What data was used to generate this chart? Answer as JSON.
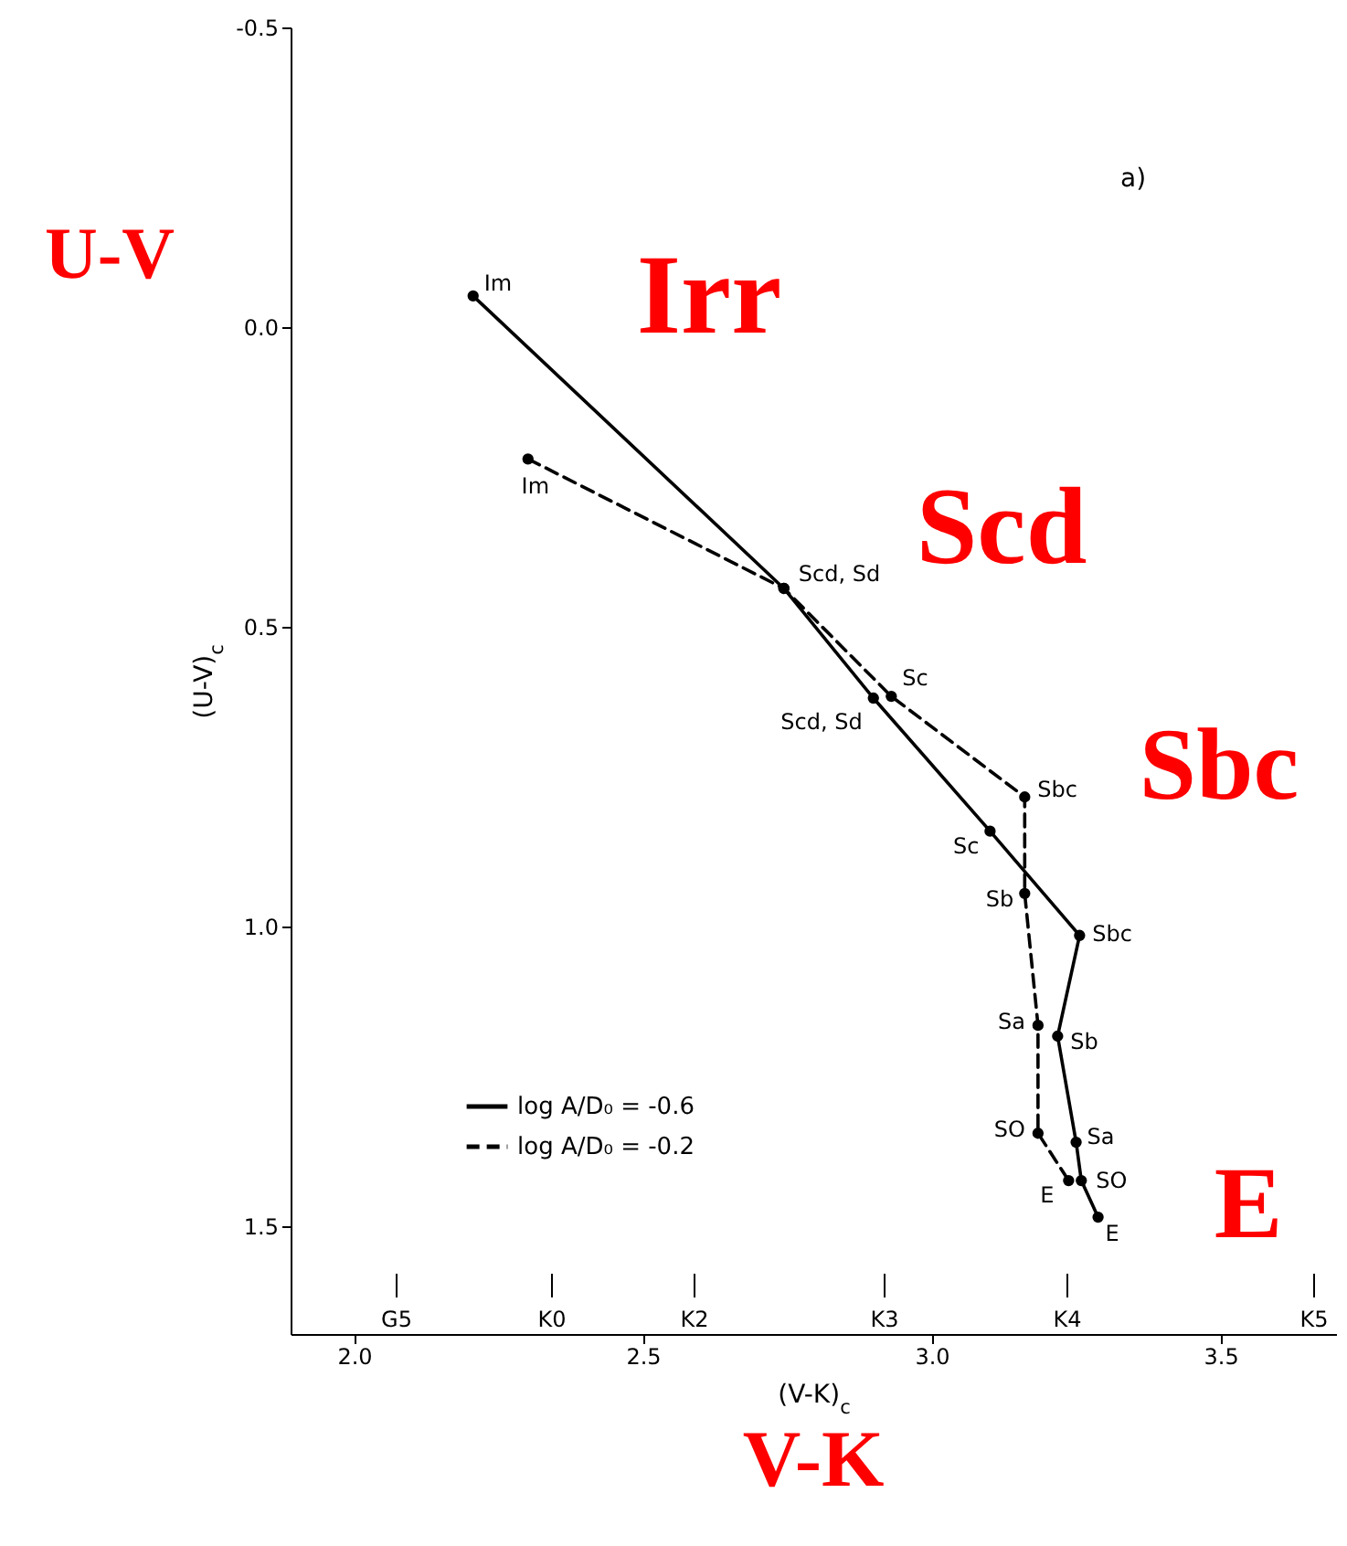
{
  "chart_data": {
    "type": "line",
    "xlabel": "(V-K)$_{c}$",
    "ylabel": "(U-V)$_{c}$",
    "xlim": [
      1.89,
      3.7
    ],
    "xticks": [
      {
        "value": 2,
        "label": "2.0"
      },
      {
        "value": 2.5,
        "label": "2.5"
      },
      {
        "value": 3,
        "label": "3.0"
      },
      {
        "value": 3.5,
        "label": "3.5"
      }
    ],
    "ylim": [
      1.68,
      -0.5
    ],
    "yticks": [
      {
        "value": -0.5,
        "label": "-0.5"
      },
      {
        "value": 0,
        "label": "0.0"
      },
      {
        "value": 0.5,
        "label": "0.5"
      },
      {
        "value": 1,
        "label": "1.0"
      },
      {
        "value": 1.5,
        "label": "1.5"
      }
    ],
    "marker": "circle",
    "legend": "bottom left",
    "series": [
      {
        "name": "log A/D₀ = -0.6",
        "color": "#000000",
        "line_style": "solid",
        "x": [
          2.206,
          2.744,
          2.899,
          3.101,
          3.256,
          3.218,
          3.25,
          3.259,
          3.288
        ],
        "values": [
          -0.052,
          0.436,
          0.619,
          0.841,
          1.015,
          1.183,
          1.36,
          1.424,
          1.485
        ]
      },
      {
        "name": "log A/D₀ = -0.2",
        "color": "#000000",
        "line_style": "dashed",
        "x": [
          2.301,
          2.744,
          2.93,
          3.161,
          3.161,
          3.184,
          3.184,
          3.237
        ],
        "values": [
          0.22,
          0.436,
          0.616,
          0.784,
          0.945,
          1.165,
          1.345,
          1.424
        ]
      }
    ],
    "annotations": [
      "a)",
      "U-V",
      "V-K",
      "Irr",
      "Scd",
      "Sbc",
      "E",
      "G5",
      "K0",
      "K2",
      "K3",
      "K4",
      "K5",
      {
        "text": "Im",
        "x": 2.206,
        "y": -0.052
      },
      {
        "text": "Scd, Sd",
        "x": 2.744,
        "y": 0.436
      },
      {
        "text": "Scd, Sd",
        "x": 2.899,
        "y": 0.619
      },
      {
        "text": "Sc",
        "x": 3.101,
        "y": 0.841
      },
      {
        "text": "Sbc",
        "x": 3.256,
        "y": 1.015
      },
      {
        "text": "Sb",
        "x": 3.218,
        "y": 1.183
      },
      {
        "text": "Sa",
        "x": 3.25,
        "y": 1.36
      },
      {
        "text": "SO",
        "x": 3.259,
        "y": 1.424
      },
      {
        "text": "E",
        "x": 3.288,
        "y": 1.485
      },
      {
        "text": "Im",
        "x": 2.301,
        "y": 0.22
      },
      {
        "text": "Sc",
        "x": 2.93,
        "y": 0.616
      },
      {
        "text": "Sbc",
        "x": 3.161,
        "y": 0.784
      },
      {
        "text": "Sb",
        "x": 3.161,
        "y": 0.945
      },
      {
        "text": "Sa",
        "x": 3.184,
        "y": 1.165
      },
      {
        "text": "SO",
        "x": 3.184,
        "y": 1.345
      },
      {
        "text": "E",
        "x": 3.237,
        "y": 1.424
      }
    ]
  }
}
